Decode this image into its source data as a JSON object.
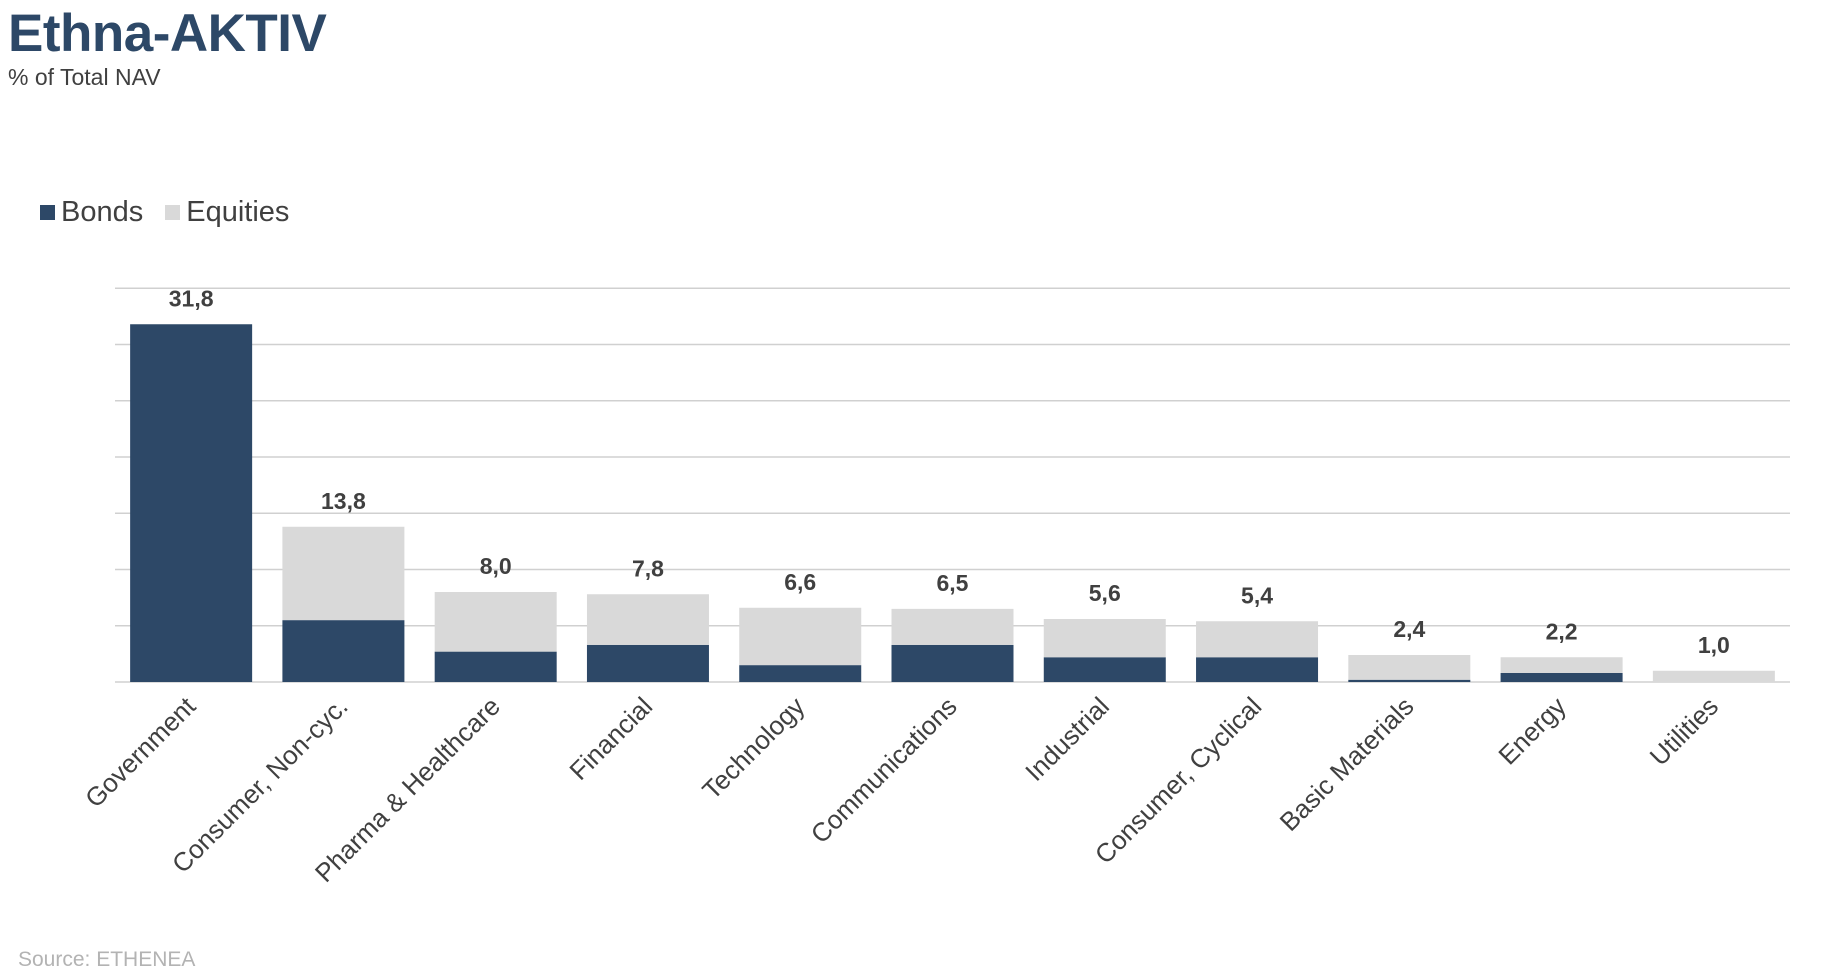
{
  "header": {
    "title": "Ethna-AKTIV",
    "subtitle": "% of Total NAV"
  },
  "legend": {
    "bonds_label": "Bonds",
    "equities_label": "Equities"
  },
  "footer": {
    "source": "Source: ETHENEA"
  },
  "colors": {
    "bonds": "#2d4867",
    "equities": "#d9d9d9",
    "grid": "#d0d0d0"
  },
  "chart_data": {
    "type": "bar",
    "stacked": true,
    "title": "Ethna-AKTIV",
    "subtitle": "% of Total NAV",
    "categories": [
      "Government",
      "Consumer, Non-cyc.",
      "Pharma & Healthcare",
      "Financial",
      "Technology",
      "Communications",
      "Industrial",
      "Consumer, Cyclical",
      "Basic Materials",
      "Energy",
      "Utilities"
    ],
    "series": [
      {
        "name": "Bonds",
        "values": [
          31.8,
          5.5,
          2.7,
          3.3,
          1.5,
          3.3,
          2.2,
          2.2,
          0.2,
          0.8,
          0.0
        ]
      },
      {
        "name": "Equities",
        "values": [
          0.0,
          8.3,
          5.3,
          4.5,
          5.1,
          3.2,
          3.4,
          3.2,
          2.2,
          1.4,
          1.0
        ]
      }
    ],
    "totals": [
      "31,8",
      "13,8",
      "8,0",
      "7,8",
      "6,6",
      "6,5",
      "5,6",
      "5,4",
      "2,4",
      "2,2",
      "1,0"
    ],
    "ylim": [
      0,
      35
    ],
    "y_gridlines": [
      0,
      5,
      10,
      15,
      20,
      25,
      30,
      35
    ],
    "y_tick_labels_shown": false,
    "grid": true,
    "legend_position": "top-left",
    "xlabel": "",
    "ylabel": ""
  }
}
